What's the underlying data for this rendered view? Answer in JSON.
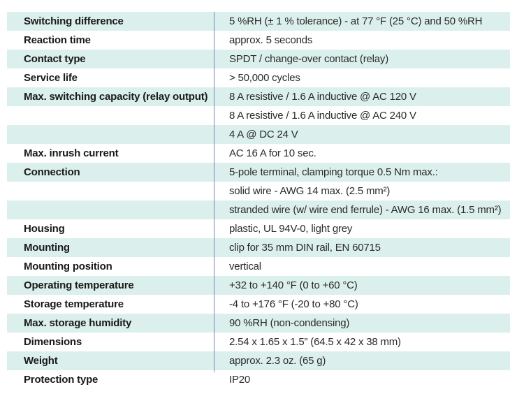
{
  "rows": [
    {
      "label": "Switching difference",
      "value": "5 %RH (± 1 % tolerance)  -  at 77 °F (25 °C) and 50 %RH"
    },
    {
      "label": "Reaction time",
      "value": "approx. 5 seconds"
    },
    {
      "label": "Contact type",
      "value": "SPDT / change-over contact (relay)"
    },
    {
      "label": "Service life",
      "value": "> 50,000 cycles"
    },
    {
      "label": "Max. switching capacity (relay output)",
      "value": "8 A resistive / 1.6 A inductive @ AC 120 V"
    },
    {
      "label": "",
      "value": "8 A resistive / 1.6 A inductive @ AC 240 V"
    },
    {
      "label": "",
      "value": "4 A @ DC 24 V"
    },
    {
      "label": "Max. inrush current",
      "value": "AC 16 A for 10 sec."
    },
    {
      "label": "Connection",
      "value": "5-pole terminal, clamping torque 0.5 Nm max.:"
    },
    {
      "label": "",
      "value": "solid wire - AWG 14 max. (2.5 mm²)"
    },
    {
      "label": "",
      "value": "stranded wire (w/ wire end ferrule) - AWG 16 max. (1.5 mm²)"
    },
    {
      "label": "Housing",
      "value": "plastic, UL 94V-0, light grey"
    },
    {
      "label": "Mounting",
      "value": "clip for 35 mm DIN rail, EN 60715"
    },
    {
      "label": "Mounting position",
      "value": "vertical"
    },
    {
      "label": "Operating temperature",
      "value": "+32 to +140 °F (0 to +60 °C)"
    },
    {
      "label": "Storage temperature",
      "value": "-4 to +176 °F (-20 to +80 °C)"
    },
    {
      "label": "Max. storage humidity",
      "value": "90 %RH (non-condensing)"
    },
    {
      "label": "Dimensions",
      "value": "2.54 x 1.65 x 1.5” (64.5 x 42 x 38 mm)"
    },
    {
      "label": "Weight",
      "value": "approx. 2.3 oz. (65 g)"
    },
    {
      "label": "Protection type",
      "value": "IP20"
    }
  ]
}
